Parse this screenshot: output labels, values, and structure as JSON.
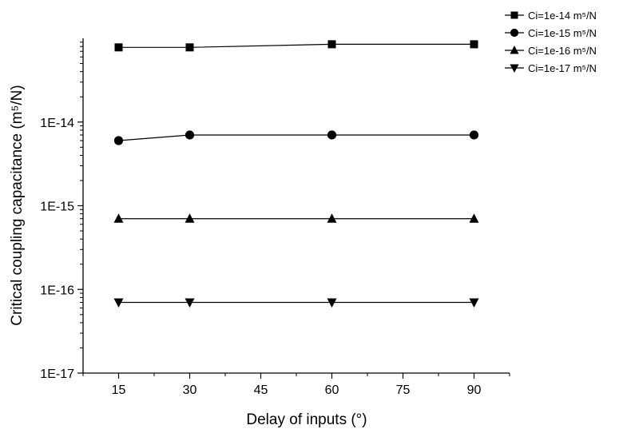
{
  "chart_data": {
    "type": "line",
    "title": "",
    "xlabel": "Delay of inputs (°)",
    "ylabel": "Critical coupling capacitance (m⁵/N)",
    "x_ticks": [
      15,
      30,
      45,
      60,
      75,
      90
    ],
    "x_tick_labels": [
      "15",
      "30",
      "45",
      "60",
      "75",
      "90"
    ],
    "xlim": [
      7.5,
      97.5
    ],
    "y_scale": "log",
    "y_ticks": [
      1e-17,
      1e-16,
      1e-15,
      1e-14
    ],
    "y_tick_labels": [
      "1E-17",
      "1E-16",
      "1E-15",
      "1E-14"
    ],
    "ylim": [
      1e-17,
      1e-13
    ],
    "grid": false,
    "legend_position": "top-right, outside",
    "x": [
      15,
      30,
      60,
      90
    ],
    "series": [
      {
        "name": "Ci=1e-14 m⁵/N",
        "marker": "square",
        "values": [
          7.8e-14,
          7.8e-14,
          8.5e-14,
          8.5e-14
        ]
      },
      {
        "name": "Ci=1e-15 m⁵/N",
        "marker": "circle",
        "values": [
          6e-15,
          7e-15,
          7e-15,
          7e-15
        ]
      },
      {
        "name": "Ci=1e-16 m⁵/N",
        "marker": "triangle-up",
        "values": [
          7e-16,
          7e-16,
          7e-16,
          7e-16
        ]
      },
      {
        "name": "Ci=1e-17 m⁵/N",
        "marker": "triangle-down",
        "values": [
          7e-17,
          7e-17,
          7e-17,
          7e-17
        ]
      }
    ],
    "colors": {
      "line": "#000000",
      "marker": "#000000"
    }
  }
}
